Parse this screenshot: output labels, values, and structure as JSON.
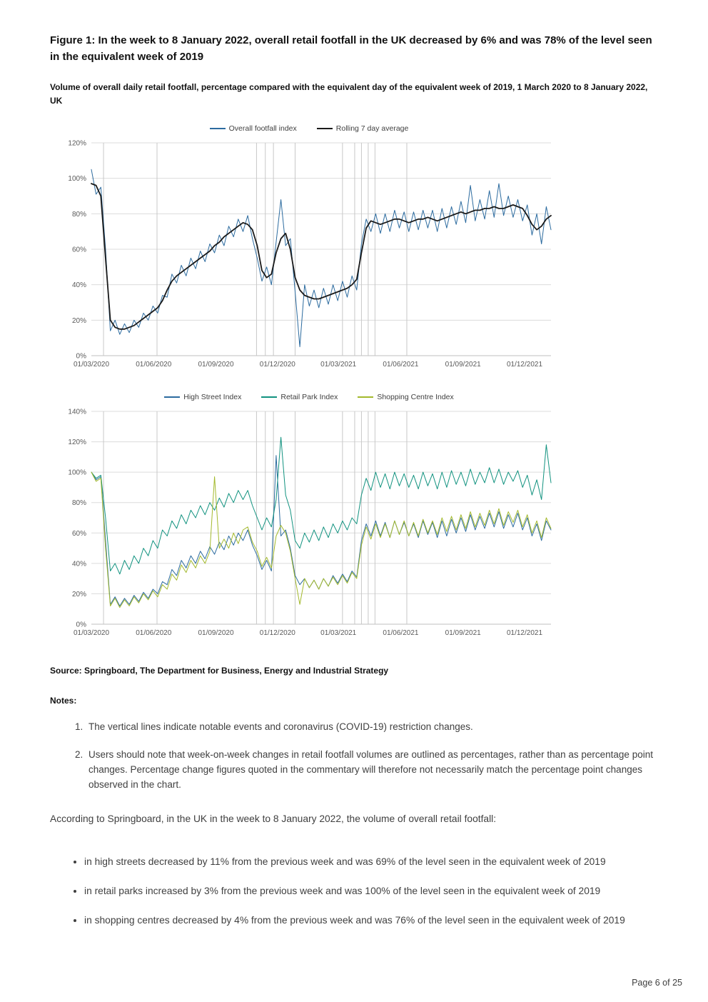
{
  "figure": {
    "title": "Figure 1: In the week to 8 January 2022, overall retail footfall in the UK decreased by 6% and was 78% of the level seen in the equivalent week of 2019",
    "subtitle": "Volume of overall daily retail footfall, percentage compared with the equivalent day of the equivalent week of 2019, 1 March 2020 to 8 January 2022, UK"
  },
  "source": "Source: Springboard, The Department for Business, Energy and Industrial Strategy",
  "notes_label": "Notes:",
  "notes": [
    "The vertical lines indicate notable events and coronavirus (COVID-19) restriction changes.",
    "Users should note that week-on-week changes in retail footfall volumes are outlined as percentages, rather than as percentage point changes. Percentage change figures quoted in the commentary will therefore not necessarily match the percentage point changes observed in the chart."
  ],
  "paragraph": "According to Springboard, in the UK in the week to 8 January 2022, the volume of overall retail footfall:",
  "bullets": [
    "in high streets decreased by 11% from the previous week and was 69% of the level seen in the equivalent week of 2019",
    "in retail parks increased by 3% from the previous week and was 100% of the level seen in the equivalent week of 2019",
    "in shopping centres decreased by 4% from the previous week and was 76% of the level seen in the equivalent week of 2019"
  ],
  "footer": {
    "page_label": "Page 6 of 25"
  },
  "chart_data": [
    {
      "type": "line",
      "title": "",
      "xlabel": "",
      "ylabel": "",
      "x_unit": "days since 01/03/2020, weekly estimated samples",
      "x_step_days": 7,
      "x_max_day": 679,
      "ylim": [
        0,
        120
      ],
      "ytick_step": 20,
      "grid": "horizontal",
      "legend_position": "top",
      "xticks": [
        {
          "label": "01/03/2020",
          "day": 0
        },
        {
          "label": "01/06/2020",
          "day": 92
        },
        {
          "label": "01/09/2020",
          "day": 184
        },
        {
          "label": "01/12/2020",
          "day": 275
        },
        {
          "label": "01/03/2021",
          "day": 365
        },
        {
          "label": "01/06/2021",
          "day": 457
        },
        {
          "label": "01/09/2021",
          "day": 549
        },
        {
          "label": "01/12/2021",
          "day": 640
        }
      ],
      "event_lines_days": [
        18,
        97,
        244,
        257,
        269,
        301,
        371,
        389,
        399,
        409,
        419,
        466
      ],
      "series": [
        {
          "name": "Overall footfall index",
          "color": "#2c6b9f",
          "width": 1,
          "values": [
            105,
            91,
            95,
            60,
            14,
            20,
            12,
            18,
            13,
            20,
            16,
            24,
            20,
            28,
            24,
            34,
            33,
            46,
            41,
            51,
            45,
            55,
            49,
            59,
            53,
            63,
            58,
            68,
            62,
            73,
            67,
            77,
            70,
            79,
            66,
            55,
            42,
            50,
            40,
            64,
            88,
            62,
            66,
            36,
            5,
            40,
            28,
            37,
            27,
            38,
            29,
            40,
            31,
            42,
            33,
            45,
            37,
            63,
            77,
            70,
            80,
            69,
            80,
            70,
            82,
            72,
            81,
            70,
            81,
            71,
            82,
            72,
            82,
            70,
            83,
            72,
            84,
            74,
            87,
            75,
            96,
            76,
            88,
            77,
            93,
            78,
            97,
            79,
            90,
            78,
            88,
            76,
            85,
            68,
            80,
            63,
            84,
            71
          ]
        },
        {
          "name": "Rolling 7 day average",
          "color": "#1a1a1a",
          "width": 1.8,
          "values": [
            97,
            96,
            90,
            55,
            20,
            16,
            15,
            15,
            16,
            17,
            19,
            21,
            23,
            25,
            27,
            31,
            37,
            42,
            45,
            47,
            49,
            51,
            53,
            55,
            57,
            59,
            62,
            64,
            67,
            69,
            71,
            73,
            75,
            74,
            71,
            62,
            48,
            44,
            46,
            58,
            66,
            69,
            60,
            44,
            37,
            34,
            33,
            32,
            32,
            33,
            34,
            35,
            36,
            37,
            38,
            40,
            43,
            58,
            72,
            76,
            75,
            74,
            75,
            76,
            77,
            77,
            76,
            75,
            76,
            77,
            77,
            78,
            77,
            76,
            77,
            78,
            79,
            80,
            81,
            80,
            81,
            82,
            82,
            83,
            83,
            84,
            83,
            83,
            84,
            85,
            84,
            83,
            79,
            74,
            71,
            73,
            77,
            79
          ]
        }
      ]
    },
    {
      "type": "line",
      "title": "",
      "xlabel": "",
      "ylabel": "",
      "x_unit": "days since 01/03/2020, weekly estimated samples",
      "x_step_days": 7,
      "x_max_day": 679,
      "ylim": [
        0,
        140
      ],
      "ytick_step": 20,
      "grid": "horizontal",
      "legend_position": "top",
      "xticks": [
        {
          "label": "01/03/2020",
          "day": 0
        },
        {
          "label": "01/06/2020",
          "day": 92
        },
        {
          "label": "01/09/2020",
          "day": 184
        },
        {
          "label": "01/12/2020",
          "day": 275
        },
        {
          "label": "01/03/2021",
          "day": 365
        },
        {
          "label": "01/06/2021",
          "day": 457
        },
        {
          "label": "01/09/2021",
          "day": 549
        },
        {
          "label": "01/12/2021",
          "day": 640
        }
      ],
      "event_lines_days": [
        18,
        97,
        244,
        257,
        269,
        301,
        371,
        389,
        399,
        409,
        419,
        466
      ],
      "series": [
        {
          "name": "High Street Index",
          "color": "#2c6b9f",
          "width": 1,
          "values": [
            100,
            95,
            97,
            55,
            13,
            18,
            12,
            17,
            13,
            19,
            15,
            21,
            17,
            23,
            20,
            28,
            26,
            36,
            32,
            42,
            37,
            45,
            40,
            48,
            43,
            51,
            46,
            54,
            49,
            58,
            52,
            60,
            55,
            62,
            52,
            45,
            36,
            42,
            35,
            111,
            58,
            62,
            50,
            32,
            26,
            30,
            24,
            29,
            23,
            30,
            25,
            32,
            27,
            33,
            28,
            35,
            31,
            55,
            66,
            58,
            68,
            58,
            67,
            57,
            68,
            59,
            67,
            58,
            66,
            57,
            68,
            59,
            67,
            57,
            68,
            58,
            69,
            60,
            70,
            61,
            72,
            62,
            71,
            63,
            73,
            64,
            74,
            63,
            72,
            64,
            73,
            62,
            70,
            58,
            66,
            55,
            68,
            62
          ]
        },
        {
          "name": "Retail Park Index",
          "color": "#11927f",
          "width": 1,
          "values": [
            100,
            96,
            98,
            70,
            35,
            40,
            33,
            42,
            36,
            45,
            40,
            50,
            45,
            55,
            50,
            62,
            58,
            68,
            63,
            72,
            66,
            75,
            70,
            78,
            72,
            80,
            75,
            83,
            77,
            86,
            80,
            88,
            82,
            88,
            78,
            70,
            62,
            70,
            64,
            82,
            123,
            85,
            75,
            55,
            50,
            60,
            54,
            62,
            55,
            64,
            57,
            66,
            60,
            68,
            62,
            70,
            66,
            85,
            96,
            88,
            100,
            90,
            99,
            89,
            100,
            91,
            99,
            90,
            98,
            89,
            100,
            91,
            99,
            89,
            100,
            90,
            101,
            92,
            100,
            91,
            102,
            92,
            100,
            93,
            103,
            93,
            102,
            92,
            100,
            94,
            101,
            90,
            98,
            85,
            95,
            82,
            118,
            93
          ]
        },
        {
          "name": "Shopping Centre Index",
          "color": "#a3b92c",
          "width": 1,
          "values": [
            100,
            94,
            96,
            50,
            12,
            17,
            11,
            16,
            12,
            18,
            14,
            20,
            16,
            22,
            18,
            26,
            23,
            33,
            29,
            39,
            34,
            42,
            37,
            45,
            40,
            48,
            97,
            50,
            56,
            50,
            60,
            53,
            62,
            64,
            54,
            48,
            38,
            44,
            37,
            58,
            65,
            60,
            48,
            30,
            13,
            30,
            24,
            29,
            23,
            30,
            25,
            31,
            26,
            32,
            27,
            34,
            30,
            52,
            64,
            56,
            66,
            57,
            66,
            57,
            68,
            59,
            68,
            58,
            67,
            58,
            69,
            60,
            68,
            59,
            70,
            61,
            71,
            62,
            72,
            63,
            74,
            64,
            73,
            65,
            75,
            66,
            76,
            65,
            74,
            67,
            75,
            64,
            72,
            60,
            68,
            57,
            70,
            63
          ]
        }
      ]
    }
  ]
}
